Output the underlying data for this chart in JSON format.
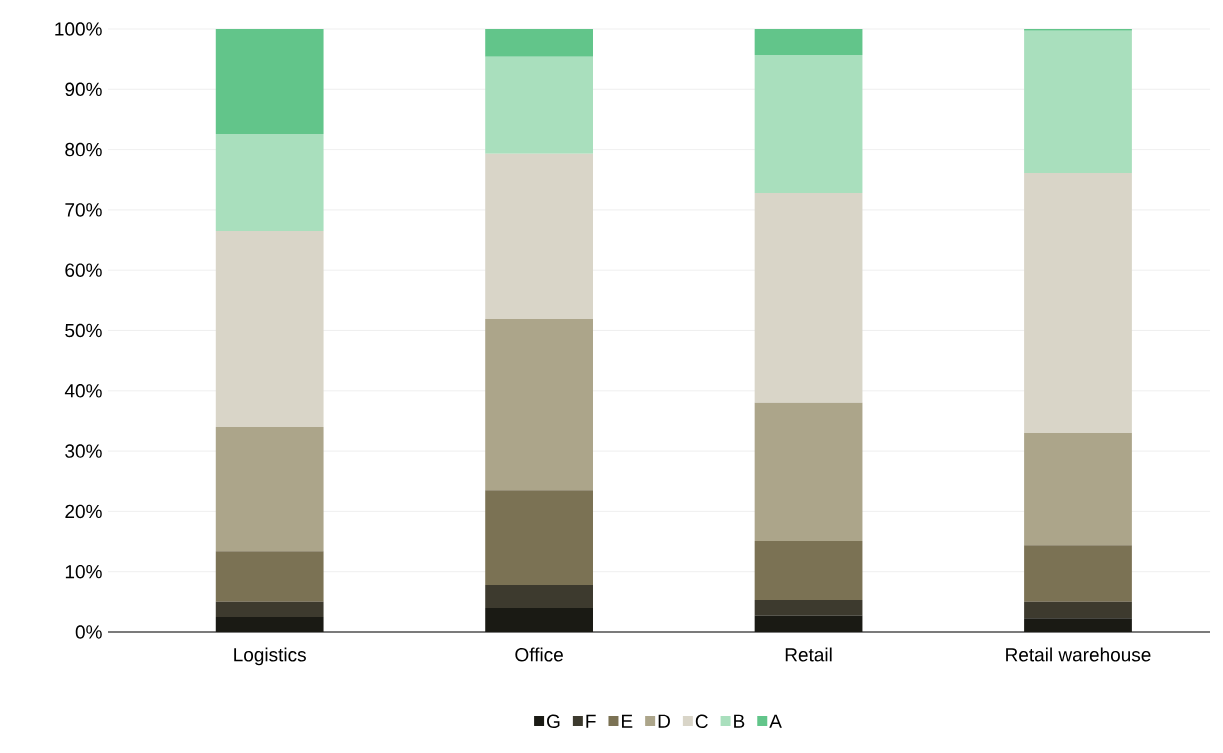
{
  "chart_data": {
    "type": "bar",
    "stacked": true,
    "categories": [
      "Logistics",
      "Office",
      "Retail",
      "Retail warehouse"
    ],
    "series": [
      {
        "name": "G",
        "color": "#1a1a14",
        "values": [
          2.5,
          4.0,
          2.7,
          2.3
        ]
      },
      {
        "name": "F",
        "color": "#3d3a2e",
        "values": [
          2.5,
          3.8,
          2.6,
          2.7
        ]
      },
      {
        "name": "E",
        "color": "#7b7254",
        "values": [
          8.4,
          15.7,
          9.8,
          9.4
        ]
      },
      {
        "name": "D",
        "color": "#aca58a",
        "values": [
          20.6,
          28.4,
          22.9,
          18.6
        ]
      },
      {
        "name": "C",
        "color": "#d9d5c8",
        "values": [
          32.5,
          27.4,
          34.8,
          43.1
        ]
      },
      {
        "name": "B",
        "color": "#a9dfbd",
        "values": [
          16.1,
          16.1,
          22.9,
          23.6
        ]
      },
      {
        "name": "A",
        "color": "#62c58a",
        "values": [
          17.4,
          4.6,
          4.3,
          0.3
        ]
      }
    ],
    "ylim": [
      0,
      100
    ],
    "yticks": [
      {
        "value": 0,
        "label": "0%"
      },
      {
        "value": 10,
        "label": "10%"
      },
      {
        "value": 20,
        "label": "20%"
      },
      {
        "value": 30,
        "label": "30%"
      },
      {
        "value": 40,
        "label": "40%"
      },
      {
        "value": 50,
        "label": "50%"
      },
      {
        "value": 60,
        "label": "60%"
      },
      {
        "value": 70,
        "label": "70%"
      },
      {
        "value": 80,
        "label": "80%"
      },
      {
        "value": 90,
        "label": "90%"
      },
      {
        "value": 100,
        "label": "100%"
      }
    ],
    "grid": "y",
    "legend": "bottom"
  }
}
